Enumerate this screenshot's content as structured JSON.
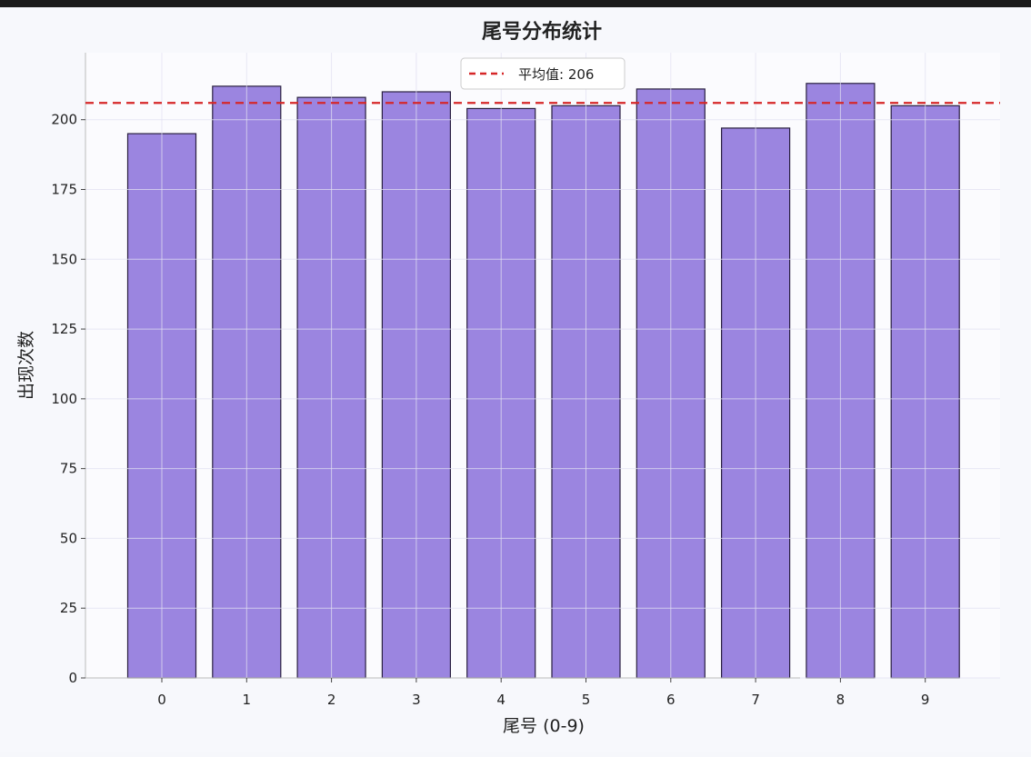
{
  "chart_data": {
    "type": "bar",
    "title": "尾号分布统计",
    "xlabel": "尾号 (0-9)",
    "ylabel": "出现次数",
    "categories": [
      "0",
      "1",
      "2",
      "3",
      "4",
      "5",
      "6",
      "7",
      "8",
      "9"
    ],
    "values": [
      195,
      212,
      208,
      210,
      204,
      205,
      211,
      197,
      213,
      205
    ],
    "ylim": [
      0,
      224
    ],
    "yticks": [
      0,
      25,
      50,
      75,
      100,
      125,
      150,
      175,
      200
    ],
    "grid": true,
    "bar_color": "#9b85e0",
    "bar_edge_color": "#2a2040",
    "reference_line": {
      "value": 206,
      "label": "平均值: 206",
      "color": "#d62728",
      "style": "dashed"
    },
    "legend_position": "top-center"
  }
}
